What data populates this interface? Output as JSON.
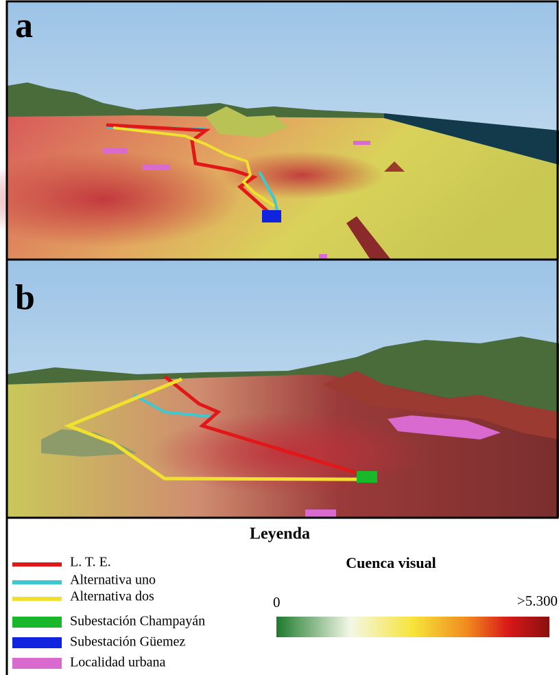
{
  "panels": [
    {
      "label": "a"
    },
    {
      "label": "b"
    }
  ],
  "legend": {
    "title": "Leyenda",
    "items": [
      {
        "label": "L. T. E."
      },
      {
        "label": "Alternativa uno"
      },
      {
        "label": "Alternativa dos"
      },
      {
        "label": "Subestación Champayán"
      },
      {
        "label": "Subestación Güemez"
      },
      {
        "label": "Localidad urbana"
      }
    ],
    "colorbar": {
      "title": "Cuenca visual",
      "min_label": "0",
      "max_label": ">5.300"
    }
  }
}
